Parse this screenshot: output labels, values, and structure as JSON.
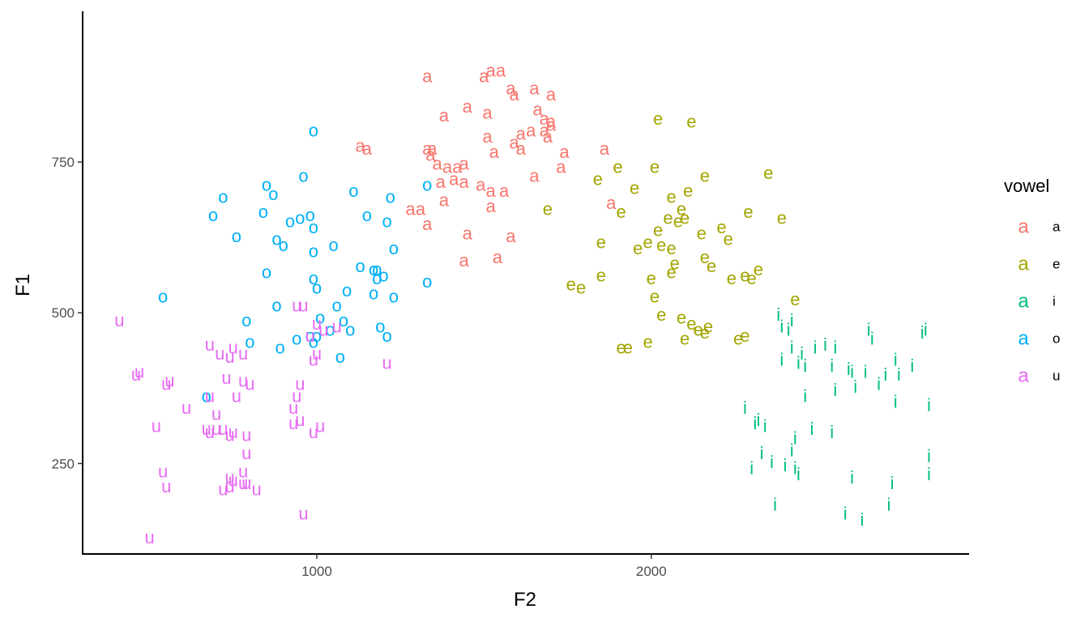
{
  "chart_data": {
    "type": "scatter",
    "title": "",
    "xlabel": "F2",
    "ylabel": "F1",
    "xlim": [
      300,
      2950
    ],
    "ylim": [
      100,
      1000
    ],
    "x_ticks": [
      1000,
      2000
    ],
    "y_ticks": [
      250,
      500,
      750
    ],
    "grid": false,
    "legend": {
      "title": "vowel",
      "position": "right",
      "key_glyph": "a"
    },
    "series": [
      {
        "name": "a",
        "color": "#F8766D",
        "points": [
          [
            1330,
            890
          ],
          [
            1500,
            890
          ],
          [
            1520,
            900
          ],
          [
            1550,
            900
          ],
          [
            1580,
            870
          ],
          [
            1590,
            860
          ],
          [
            1650,
            870
          ],
          [
            1700,
            860
          ],
          [
            1380,
            825
          ],
          [
            1450,
            840
          ],
          [
            1510,
            830
          ],
          [
            1660,
            835
          ],
          [
            1700,
            815
          ],
          [
            1700,
            810
          ],
          [
            1640,
            800
          ],
          [
            1610,
            795
          ],
          [
            1510,
            790
          ],
          [
            1590,
            780
          ],
          [
            1680,
            800
          ],
          [
            1690,
            790
          ],
          [
            1680,
            820
          ],
          [
            1130,
            775
          ],
          [
            1150,
            770
          ],
          [
            1340,
            760
          ],
          [
            1330,
            770
          ],
          [
            1345,
            770
          ],
          [
            1530,
            765
          ],
          [
            1610,
            770
          ],
          [
            1740,
            765
          ],
          [
            1860,
            770
          ],
          [
            1360,
            745
          ],
          [
            1390,
            740
          ],
          [
            1420,
            740
          ],
          [
            1440,
            745
          ],
          [
            1410,
            720
          ],
          [
            1490,
            710
          ],
          [
            1730,
            740
          ],
          [
            1650,
            725
          ],
          [
            1370,
            715
          ],
          [
            1440,
            715
          ],
          [
            1520,
            700
          ],
          [
            1560,
            700
          ],
          [
            1380,
            685
          ],
          [
            1280,
            670
          ],
          [
            1310,
            670
          ],
          [
            1520,
            675
          ],
          [
            1880,
            680
          ],
          [
            1330,
            645
          ],
          [
            1450,
            630
          ],
          [
            1580,
            625
          ],
          [
            1440,
            585
          ],
          [
            1540,
            590
          ]
        ]
      },
      {
        "name": "e",
        "color": "#A3A500",
        "points": [
          [
            2020,
            820
          ],
          [
            2120,
            815
          ],
          [
            1900,
            740
          ],
          [
            2010,
            740
          ],
          [
            2160,
            725
          ],
          [
            2350,
            730
          ],
          [
            1840,
            720
          ],
          [
            2110,
            700
          ],
          [
            1950,
            705
          ],
          [
            2060,
            690
          ],
          [
            2090,
            670
          ],
          [
            1690,
            670
          ],
          [
            1910,
            665
          ],
          [
            2290,
            665
          ],
          [
            2390,
            655
          ],
          [
            2050,
            655
          ],
          [
            2100,
            655
          ],
          [
            2080,
            650
          ],
          [
            2210,
            640
          ],
          [
            2020,
            635
          ],
          [
            2150,
            630
          ],
          [
            2230,
            620
          ],
          [
            1850,
            615
          ],
          [
            1960,
            605
          ],
          [
            1990,
            615
          ],
          [
            2030,
            610
          ],
          [
            2060,
            605
          ],
          [
            2160,
            590
          ],
          [
            2070,
            580
          ],
          [
            2180,
            575
          ],
          [
            2320,
            570
          ],
          [
            2060,
            565
          ],
          [
            2000,
            555
          ],
          [
            2240,
            555
          ],
          [
            2300,
            555
          ],
          [
            2280,
            560
          ],
          [
            1850,
            560
          ],
          [
            1760,
            545
          ],
          [
            1790,
            540
          ],
          [
            2010,
            525
          ],
          [
            2430,
            520
          ],
          [
            2030,
            495
          ],
          [
            2090,
            490
          ],
          [
            2140,
            470
          ],
          [
            2170,
            475
          ],
          [
            2120,
            480
          ],
          [
            2160,
            465
          ],
          [
            2280,
            460
          ],
          [
            2260,
            455
          ],
          [
            1990,
            450
          ],
          [
            2100,
            455
          ],
          [
            1910,
            440
          ],
          [
            1930,
            440
          ]
        ]
      },
      {
        "name": "i",
        "color": "#00BF7D",
        "points": [
          [
            2380,
            495
          ],
          [
            2390,
            475
          ],
          [
            2420,
            485
          ],
          [
            2410,
            470
          ],
          [
            2650,
            470
          ],
          [
            2820,
            470
          ],
          [
            2810,
            465
          ],
          [
            2660,
            455
          ],
          [
            2550,
            440
          ],
          [
            2520,
            445
          ],
          [
            2490,
            440
          ],
          [
            2420,
            440
          ],
          [
            2450,
            430
          ],
          [
            2390,
            420
          ],
          [
            2440,
            415
          ],
          [
            2460,
            410
          ],
          [
            2540,
            410
          ],
          [
            2600,
            400
          ],
          [
            2640,
            400
          ],
          [
            2700,
            395
          ],
          [
            2740,
            395
          ],
          [
            2780,
            410
          ],
          [
            2730,
            420
          ],
          [
            2590,
            405
          ],
          [
            2680,
            380
          ],
          [
            2610,
            375
          ],
          [
            2550,
            370
          ],
          [
            2460,
            360
          ],
          [
            2730,
            350
          ],
          [
            2830,
            345
          ],
          [
            2280,
            340
          ],
          [
            2320,
            320
          ],
          [
            2310,
            315
          ],
          [
            2340,
            310
          ],
          [
            2480,
            305
          ],
          [
            2540,
            300
          ],
          [
            2430,
            290
          ],
          [
            2420,
            270
          ],
          [
            2330,
            265
          ],
          [
            2300,
            240
          ],
          [
            2360,
            250
          ],
          [
            2400,
            245
          ],
          [
            2430,
            240
          ],
          [
            2440,
            230
          ],
          [
            2600,
            225
          ],
          [
            2720,
            215
          ],
          [
            2830,
            260
          ],
          [
            2830,
            230
          ],
          [
            2370,
            180
          ],
          [
            2710,
            180
          ],
          [
            2580,
            165
          ],
          [
            2630,
            155
          ]
        ]
      },
      {
        "name": "o",
        "color": "#00B0F6",
        "points": [
          [
            990,
            800
          ],
          [
            960,
            725
          ],
          [
            1110,
            700
          ],
          [
            1330,
            710
          ],
          [
            850,
            710
          ],
          [
            870,
            695
          ],
          [
            720,
            690
          ],
          [
            1220,
            690
          ],
          [
            690,
            660
          ],
          [
            840,
            665
          ],
          [
            980,
            660
          ],
          [
            950,
            655
          ],
          [
            1150,
            660
          ],
          [
            1210,
            650
          ],
          [
            920,
            650
          ],
          [
            990,
            640
          ],
          [
            760,
            625
          ],
          [
            880,
            620
          ],
          [
            900,
            610
          ],
          [
            1050,
            610
          ],
          [
            1230,
            605
          ],
          [
            990,
            600
          ],
          [
            1130,
            575
          ],
          [
            1170,
            570
          ],
          [
            1180,
            570
          ],
          [
            1200,
            560
          ],
          [
            850,
            565
          ],
          [
            990,
            555
          ],
          [
            1180,
            555
          ],
          [
            1330,
            550
          ],
          [
            1000,
            540
          ],
          [
            1090,
            535
          ],
          [
            1170,
            530
          ],
          [
            1230,
            525
          ],
          [
            540,
            525
          ],
          [
            880,
            510
          ],
          [
            1060,
            510
          ],
          [
            1010,
            490
          ],
          [
            1080,
            485
          ],
          [
            790,
            485
          ],
          [
            1040,
            470
          ],
          [
            1100,
            470
          ],
          [
            1190,
            475
          ],
          [
            980,
            460
          ],
          [
            1000,
            460
          ],
          [
            1210,
            460
          ],
          [
            940,
            455
          ],
          [
            800,
            450
          ],
          [
            990,
            450
          ],
          [
            890,
            440
          ],
          [
            1070,
            425
          ],
          [
            670,
            360
          ]
        ]
      },
      {
        "name": "u",
        "color": "#E76BF3",
        "points": [
          [
            410,
            485
          ],
          [
            940,
            510
          ],
          [
            960,
            510
          ],
          [
            1000,
            480
          ],
          [
            1060,
            475
          ],
          [
            1020,
            470
          ],
          [
            980,
            460
          ],
          [
            680,
            445
          ],
          [
            750,
            440
          ],
          [
            710,
            430
          ],
          [
            780,
            430
          ],
          [
            740,
            425
          ],
          [
            1000,
            430
          ],
          [
            990,
            420
          ],
          [
            1210,
            415
          ],
          [
            470,
            400
          ],
          [
            460,
            395
          ],
          [
            730,
            390
          ],
          [
            560,
            385
          ],
          [
            550,
            380
          ],
          [
            780,
            385
          ],
          [
            800,
            380
          ],
          [
            950,
            380
          ],
          [
            940,
            360
          ],
          [
            680,
            360
          ],
          [
            760,
            360
          ],
          [
            610,
            340
          ],
          [
            930,
            340
          ],
          [
            700,
            330
          ],
          [
            950,
            320
          ],
          [
            930,
            315
          ],
          [
            1010,
            310
          ],
          [
            520,
            310
          ],
          [
            700,
            305
          ],
          [
            720,
            305
          ],
          [
            750,
            300
          ],
          [
            740,
            295
          ],
          [
            790,
            295
          ],
          [
            670,
            305
          ],
          [
            680,
            300
          ],
          [
            990,
            300
          ],
          [
            790,
            265
          ],
          [
            540,
            235
          ],
          [
            780,
            235
          ],
          [
            740,
            225
          ],
          [
            750,
            220
          ],
          [
            780,
            215
          ],
          [
            790,
            215
          ],
          [
            740,
            210
          ],
          [
            720,
            205
          ],
          [
            820,
            205
          ],
          [
            550,
            210
          ],
          [
            960,
            165
          ],
          [
            500,
            125
          ]
        ]
      }
    ]
  }
}
